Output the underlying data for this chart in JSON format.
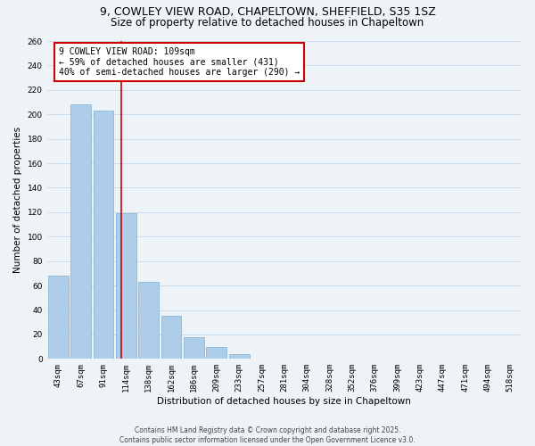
{
  "title_line1": "9, COWLEY VIEW ROAD, CHAPELTOWN, SHEFFIELD, S35 1SZ",
  "title_line2": "Size of property relative to detached houses in Chapeltown",
  "xlabel": "Distribution of detached houses by size in Chapeltown",
  "ylabel": "Number of detached properties",
  "bar_labels": [
    "43sqm",
    "67sqm",
    "91sqm",
    "114sqm",
    "138sqm",
    "162sqm",
    "186sqm",
    "209sqm",
    "233sqm",
    "257sqm",
    "281sqm",
    "304sqm",
    "328sqm",
    "352sqm",
    "376sqm",
    "399sqm",
    "423sqm",
    "447sqm",
    "471sqm",
    "494sqm",
    "518sqm"
  ],
  "bar_values": [
    68,
    208,
    203,
    119,
    63,
    35,
    18,
    10,
    4,
    0,
    0,
    0,
    0,
    0,
    0,
    0,
    0,
    0,
    0,
    0,
    0
  ],
  "bar_color": "#aecde8",
  "bar_edge_color": "#7aafd4",
  "vline_x": 2.77,
  "vline_color": "#cc0000",
  "annotation_text": "9 COWLEY VIEW ROAD: 109sqm\n← 59% of detached houses are smaller (431)\n40% of semi-detached houses are larger (290) →",
  "annotation_box_color": "#ffffff",
  "annotation_box_edge": "#cc0000",
  "ylim": [
    0,
    260
  ],
  "yticks": [
    0,
    20,
    40,
    60,
    80,
    100,
    120,
    140,
    160,
    180,
    200,
    220,
    240,
    260
  ],
  "grid_color": "#c8dced",
  "background_color": "#eef3f8",
  "footer_line1": "Contains HM Land Registry data © Crown copyright and database right 2025.",
  "footer_line2": "Contains public sector information licensed under the Open Government Licence v3.0.",
  "title_fontsize": 9,
  "subtitle_fontsize": 8.5,
  "axis_label_fontsize": 7.5,
  "tick_fontsize": 6.5,
  "annotation_fontsize": 7,
  "footer_fontsize": 5.5
}
